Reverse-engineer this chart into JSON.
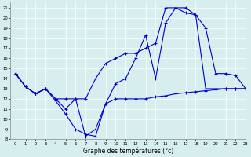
{
  "xlabel": "Graphe des températures (°c)",
  "background_color": "#d6eeee",
  "line_color": "#0000cc",
  "ylim": [
    8,
    21.5
  ],
  "xlim": [
    -0.5,
    23
  ],
  "yticks": [
    8,
    9,
    10,
    11,
    12,
    13,
    14,
    15,
    16,
    17,
    18,
    19,
    20,
    21
  ],
  "xticks": [
    0,
    1,
    2,
    3,
    4,
    5,
    6,
    7,
    8,
    9,
    10,
    11,
    12,
    13,
    14,
    15,
    16,
    17,
    18,
    19,
    20,
    21,
    22,
    23
  ],
  "line1_x": [
    0,
    1,
    2,
    3,
    4,
    5,
    6,
    7,
    8,
    9,
    10,
    11,
    12,
    13,
    14,
    15,
    16,
    17,
    18,
    19,
    20,
    21,
    22,
    23
  ],
  "line1_y": [
    14.5,
    13.2,
    12.5,
    13.0,
    11.8,
    10.5,
    9.0,
    8.5,
    8.3,
    11.5,
    12.0,
    12.0,
    12.0,
    12.0,
    12.2,
    12.3,
    12.5,
    12.6,
    12.7,
    12.8,
    12.9,
    13.0,
    13.0,
    13.0
  ],
  "line2_x": [
    0,
    1,
    2,
    3,
    4,
    5,
    6,
    7,
    8,
    9,
    10,
    11,
    12,
    13,
    14,
    15,
    16,
    17,
    18,
    19,
    20,
    21,
    22,
    23
  ],
  "line2_y": [
    14.5,
    13.2,
    12.5,
    13.0,
    12.0,
    12.0,
    12.0,
    12.0,
    14.0,
    15.5,
    16.0,
    16.5,
    16.5,
    17.0,
    17.5,
    21.0,
    21.0,
    20.5,
    20.3,
    19.0,
    14.5,
    14.5,
    14.3,
    13.0
  ],
  "line3_x": [
    0,
    1,
    2,
    3,
    4,
    5,
    6,
    7,
    8,
    9,
    10,
    11,
    12,
    13,
    14,
    15,
    16,
    17,
    18,
    19,
    20,
    21,
    22,
    23
  ],
  "line3_y": [
    14.5,
    13.2,
    12.5,
    13.0,
    12.0,
    11.0,
    12.0,
    8.3,
    9.0,
    11.5,
    13.5,
    14.0,
    16.0,
    18.3,
    14.0,
    19.5,
    21.0,
    21.0,
    20.3,
    13.0,
    13.0,
    13.0,
    13.0,
    13.0
  ]
}
